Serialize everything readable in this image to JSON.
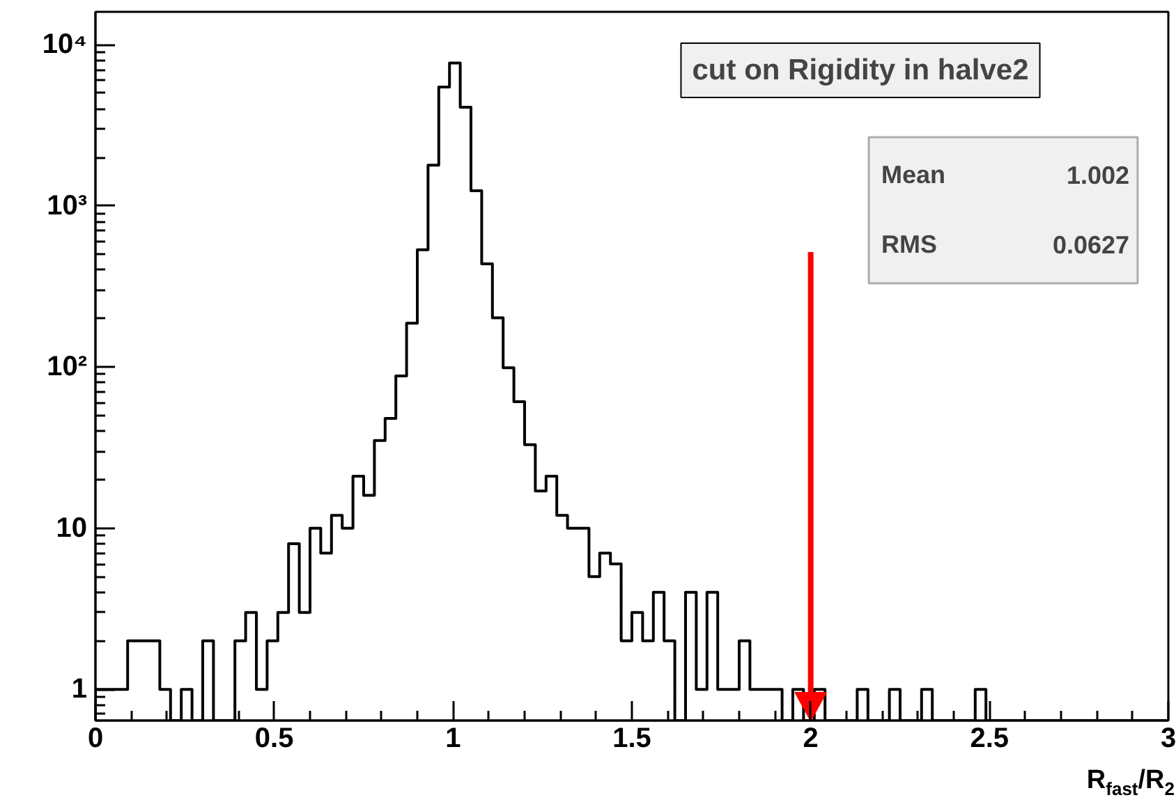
{
  "chart_data": {
    "type": "histogram",
    "title": "cut on Rigidity in halve2",
    "xlabel": "R$_{fast}$/R$_{2}$",
    "bins": [
      0,
      0.03,
      0.06,
      0.09,
      0.12,
      0.15,
      0.18,
      0.21,
      0.24,
      0.27,
      0.3,
      0.33,
      0.36,
      0.39,
      0.42,
      0.45,
      0.48,
      0.51,
      0.54,
      0.57,
      0.6,
      0.63,
      0.66,
      0.69,
      0.72,
      0.75,
      0.78,
      0.81,
      0.84,
      0.87,
      0.9,
      0.93,
      0.96,
      0.99,
      1.02,
      1.05,
      1.08,
      1.11,
      1.14,
      1.17,
      1.2,
      1.23,
      1.26,
      1.29,
      1.32,
      1.35,
      1.38,
      1.41,
      1.44,
      1.47,
      1.5,
      1.53,
      1.56,
      1.59,
      1.62,
      1.65,
      1.68,
      1.71,
      1.74,
      1.77,
      1.8,
      1.83,
      1.86,
      1.89,
      1.92,
      1.95,
      1.98,
      2.01,
      2.04,
      2.07,
      2.1,
      2.13,
      2.16,
      2.19,
      2.22,
      2.25,
      2.28,
      2.31,
      2.34,
      2.37,
      2.4,
      2.43,
      2.46,
      2.49,
      2.52,
      2.55,
      2.58,
      2.61,
      2.64,
      2.67,
      2.7,
      2.73,
      2.76,
      2.79,
      2.82,
      2.85,
      2.88,
      2.91,
      2.94,
      2.97,
      3
    ],
    "values": [
      1,
      1,
      1,
      2,
      2,
      2,
      1,
      null,
      1,
      null,
      2,
      null,
      null,
      2,
      3,
      1,
      2,
      3,
      8,
      3,
      10,
      7,
      12,
      10,
      21,
      16,
      35,
      48,
      88,
      187,
      534,
      1790,
      5470,
      7710,
      4100,
      1240,
      437,
      202,
      99,
      61,
      33,
      17,
      21,
      12,
      10,
      10,
      5,
      7,
      6,
      2,
      3,
      2,
      4,
      2,
      null,
      4,
      1,
      4,
      1,
      1,
      2,
      1,
      1,
      1,
      null,
      1,
      null,
      1,
      null,
      null,
      null,
      1,
      null,
      null,
      1,
      null,
      null,
      1,
      null,
      null,
      null,
      null,
      1,
      null,
      null,
      null,
      null,
      null,
      null,
      null,
      null,
      null,
      null,
      null,
      null,
      null,
      null,
      null,
      null,
      null
    ],
    "color": "#000000",
    "log": true,
    "xlim": [
      0,
      3
    ],
    "xticks": [
      0,
      0.5,
      1,
      1.5,
      2,
      2.5,
      3
    ],
    "ylim": [
      0.64,
      16000
    ],
    "yticks": [
      1,
      10,
      {
        "value": 100,
        "label": "10²"
      },
      {
        "value": 1000,
        "label": "10³"
      },
      {
        "value": 10000,
        "label": "10⁴"
      }
    ],
    "grid": false,
    "ref_lines": [
      {
        "axis": "x",
        "value": 2,
        "color": "#ff0000"
      }
    ],
    "annotations": [
      "Mean 1.002",
      "RMS 0.0627"
    ]
  }
}
